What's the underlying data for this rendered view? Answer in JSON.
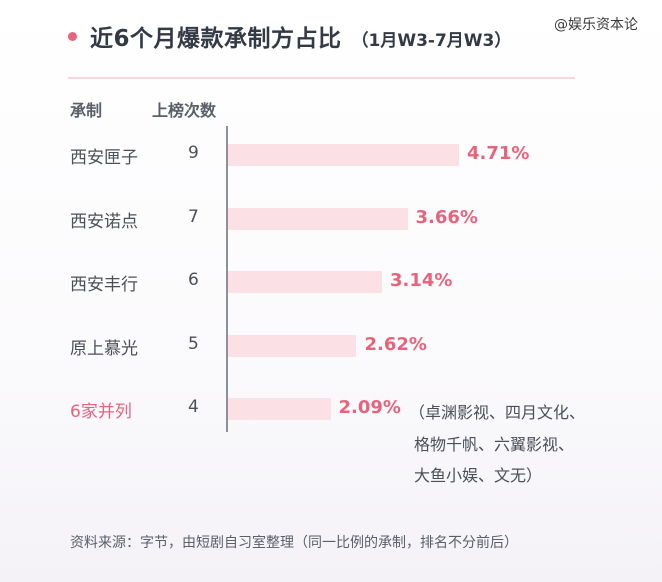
{
  "header": {
    "title": "近6个月爆款承制方占比",
    "subtitle": "（1月W3-7月W3）",
    "watermark": "@娱乐资本论"
  },
  "colors": {
    "accent": "#e8637c",
    "bar": "#fbe1e6",
    "text": "#4b5058"
  },
  "chart_data": {
    "type": "bar",
    "orientation": "horizontal",
    "column_headers": [
      "承制",
      "上榜次数"
    ],
    "categories": [
      "西安匣子",
      "西安诺点",
      "西安丰行",
      "原上慕光",
      "6家并列"
    ],
    "counts": [
      9,
      7,
      6,
      5,
      4
    ],
    "values": [
      4.71,
      3.66,
      3.14,
      2.62,
      2.09
    ],
    "value_labels": [
      "4.71%",
      "3.66%",
      "3.14%",
      "2.62%",
      "2.09%"
    ],
    "annotation_lines": [
      "（卓渊影视、四月文化、",
      "格物千帆、六翼影视、",
      "大鱼小娱、文无）"
    ],
    "grid": false
  },
  "footer": {
    "source": "资料来源：字节，由短剧自习室整理（同一比例的承制，排名不分前后）"
  }
}
